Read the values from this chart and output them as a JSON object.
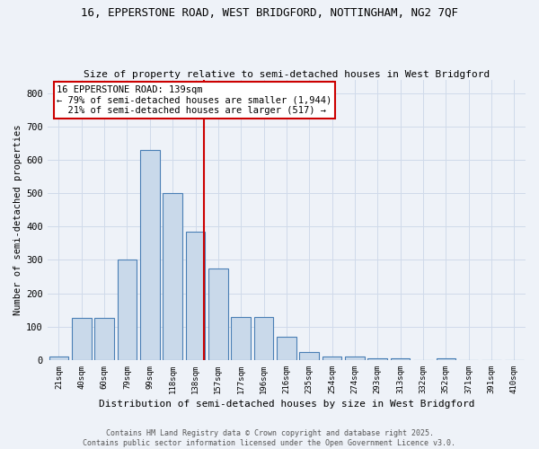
{
  "title_line1": "16, EPPERSTONE ROAD, WEST BRIDGFORD, NOTTINGHAM, NG2 7QF",
  "title_line2": "Size of property relative to semi-detached houses in West Bridgford",
  "xlabel": "Distribution of semi-detached houses by size in West Bridgford",
  "ylabel": "Number of semi-detached properties",
  "categories": [
    "21sqm",
    "40sqm",
    "60sqm",
    "79sqm",
    "99sqm",
    "118sqm",
    "138sqm",
    "157sqm",
    "177sqm",
    "196sqm",
    "216sqm",
    "235sqm",
    "254sqm",
    "274sqm",
    "293sqm",
    "313sqm",
    "332sqm",
    "352sqm",
    "371sqm",
    "391sqm",
    "410sqm"
  ],
  "values": [
    10,
    125,
    125,
    300,
    630,
    500,
    385,
    275,
    130,
    130,
    70,
    25,
    10,
    10,
    5,
    5,
    0,
    5,
    0,
    0,
    0
  ],
  "bar_color": "#c9d9ea",
  "bar_edge_color": "#4a7fb5",
  "grid_color": "#d0daea",
  "background_color": "#eef2f8",
  "red_line_index": 6,
  "red_line_color": "#cc0000",
  "property_label": "16 EPPERSTONE ROAD: 139sqm",
  "pct_smaller": 79,
  "n_smaller": 1944,
  "pct_larger": 21,
  "n_larger": 517,
  "annotation_bg": "#ffffff",
  "annotation_edge": "#cc0000",
  "footer_line1": "Contains HM Land Registry data © Crown copyright and database right 2025.",
  "footer_line2": "Contains public sector information licensed under the Open Government Licence v3.0.",
  "ylim": [
    0,
    840
  ],
  "yticks": [
    0,
    100,
    200,
    300,
    400,
    500,
    600,
    700,
    800
  ]
}
